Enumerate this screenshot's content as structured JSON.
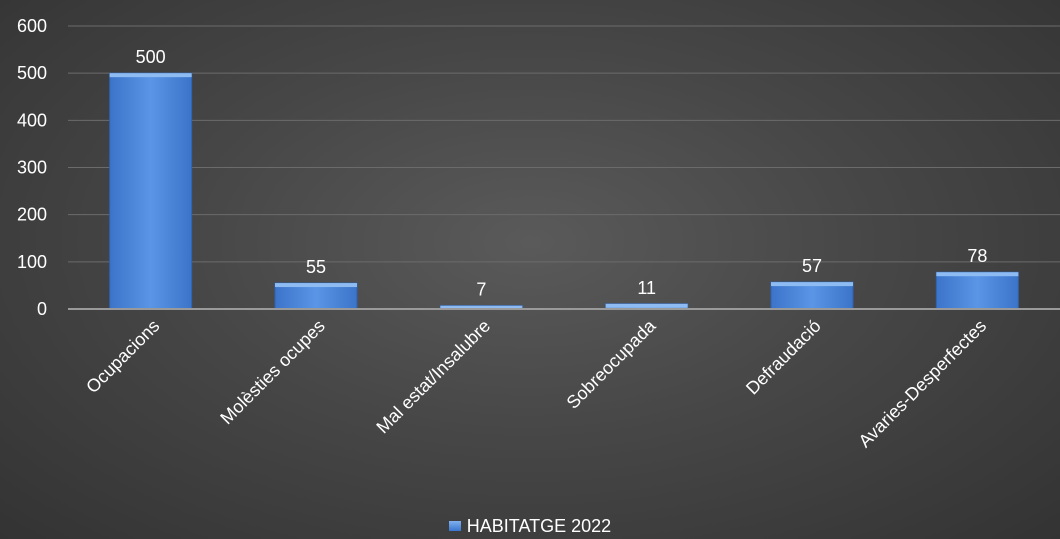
{
  "chart_data": {
    "type": "bar",
    "categories": [
      "Ocupacions",
      "Molèsties ocupes",
      "Mal estat/Insalubre",
      "Sobreocupada",
      "Defraudació",
      "Avaries-Desperfectes"
    ],
    "series": [
      {
        "name": "HABITATGE 2022",
        "values": [
          500,
          55,
          7,
          11,
          57,
          78
        ]
      }
    ],
    "ylim": [
      0,
      600
    ],
    "yticks": [
      0,
      100,
      200,
      300,
      400,
      500,
      600
    ],
    "grid": true,
    "legend_position": "bottom",
    "bar_color": "#4a86dc"
  }
}
